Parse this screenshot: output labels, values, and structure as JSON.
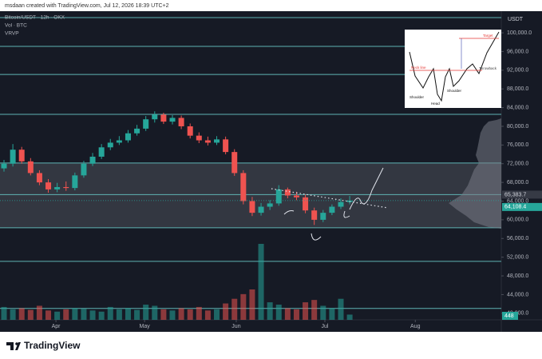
{
  "header": "msdaan created with TradingView.com, Jul 12, 2026 18:39 UTC+2",
  "legend": [
    "Bitcoin/USDT · 12h · OKX",
    "Vol · BTC",
    "VRVP"
  ],
  "currency": "USDT",
  "brand": "TradingView",
  "inset": {
    "labels": [
      "Target",
      "Neck line",
      "Throwback",
      "Shoulder",
      "Head",
      "Shoulder"
    ]
  },
  "chart_data": {
    "type": "candlestick",
    "xlim": [
      -0.45,
      56.1
    ],
    "xticks": [
      {
        "value": 5.86,
        "label": "Apr"
      },
      {
        "value": 15.86,
        "label": "May"
      },
      {
        "value": 26.2,
        "label": "Jun"
      },
      {
        "value": 36.2,
        "label": "Jul"
      },
      {
        "value": 46.4,
        "label": "Aug"
      }
    ],
    "ylim": [
      38600,
      103600
    ],
    "yticks": [
      {
        "value": 100000,
        "label": "100,000.0"
      },
      {
        "value": 96000,
        "label": "96,000.0"
      },
      {
        "value": 92000,
        "label": "92,000.0"
      },
      {
        "value": 88000,
        "label": "88,000.0"
      },
      {
        "value": 84000,
        "label": "84,000.0"
      },
      {
        "value": 80000,
        "label": "80,000.0"
      },
      {
        "value": 76000,
        "label": "76,000.0"
      },
      {
        "value": 72000,
        "label": "72,000.0"
      },
      {
        "value": 68000,
        "label": "68,000.0"
      },
      {
        "value": 64000,
        "label": "64,000.0"
      },
      {
        "value": 60000,
        "label": "60,000.0"
      },
      {
        "value": 56000,
        "label": "56,000.0"
      },
      {
        "value": 52000,
        "label": "52,000.0"
      },
      {
        "value": 48000,
        "label": "48,000.0"
      },
      {
        "value": 44000,
        "label": "44,000.0"
      },
      {
        "value": 40000,
        "label": "40,000.0"
      }
    ],
    "open": [
      71000,
      72000,
      75000,
      72500,
      70000,
      68000,
      66500,
      67000,
      66800,
      69500,
      72000,
      73500,
      75500,
      76500,
      77000,
      78500,
      79500,
      81500,
      82500,
      81000,
      81800,
      80000,
      78000,
      77000,
      76500,
      77200,
      74500,
      70000,
      64000,
      61500,
      62800,
      63500,
      66500,
      65200,
      64800,
      62000,
      60000,
      61500,
      62800,
      63800
    ],
    "high": [
      72800,
      76200,
      75600,
      73200,
      70600,
      68700,
      67900,
      68200,
      70100,
      72600,
      74300,
      76200,
      77300,
      77900,
      79200,
      80300,
      82200,
      83200,
      82900,
      82400,
      82300,
      80600,
      78700,
      77800,
      77900,
      77800,
      75100,
      70600,
      64900,
      63600,
      64200,
      67400,
      66900,
      66000,
      65400,
      62600,
      62100,
      63300,
      64600,
      65100
    ],
    "low": [
      70300,
      71400,
      72000,
      69500,
      67400,
      65800,
      65900,
      66200,
      66300,
      69000,
      71500,
      73000,
      74900,
      76000,
      76500,
      78000,
      79000,
      80800,
      80500,
      80400,
      79400,
      77400,
      76400,
      75900,
      76000,
      74000,
      69400,
      63300,
      60800,
      60900,
      62100,
      63000,
      64600,
      64200,
      61400,
      58900,
      59500,
      61000,
      62300,
      63300
    ],
    "close": [
      72000,
      75000,
      72500,
      70000,
      68000,
      66500,
      67000,
      66800,
      69500,
      72000,
      73500,
      75500,
      76500,
      77000,
      78500,
      79500,
      81500,
      82500,
      81000,
      81800,
      80000,
      78000,
      77000,
      76500,
      77200,
      74500,
      70000,
      64000,
      61500,
      62800,
      63500,
      66500,
      65200,
      64800,
      62000,
      60000,
      61500,
      62800,
      63800,
      64108.4
    ],
    "up_color": "#26a69a",
    "down_color": "#ef5350",
    "volume": {
      "values": [
        1100,
        900,
        1000,
        850,
        1200,
        800,
        700,
        900,
        1000,
        950,
        800,
        700,
        1100,
        900,
        1000,
        850,
        1300,
        1200,
        900,
        800,
        1000,
        900,
        1100,
        800,
        900,
        1400,
        1800,
        2200,
        2600,
        6500,
        1500,
        1300,
        1000,
        900,
        1500,
        1700,
        1200,
        1000,
        1800,
        448
      ]
    },
    "levels": [
      103250,
      97100,
      91100,
      82560,
      72140,
      {
        "value": 65383.7,
        "label": "65,383.7"
      },
      58290,
      51110,
      41030
    ],
    "level_color": "#5fb3b3",
    "zone": [
      58290,
      72140
    ],
    "last_price": {
      "value": 64108.4,
      "label": "64,108.4"
    }
  }
}
